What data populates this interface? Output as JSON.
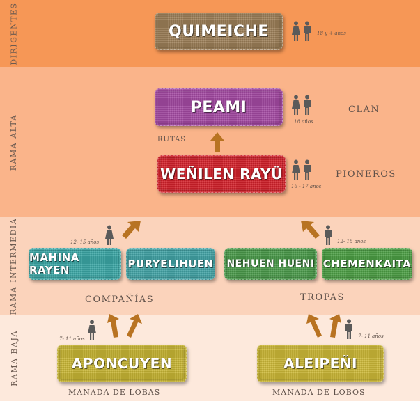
{
  "side_labels": {
    "dirigentes": "DIRIGENTES",
    "rama_alta": "RAMA ALTA",
    "rama_intermedia": "RAMA INTERMEDIA",
    "rama_baja": "RAMA BAJA"
  },
  "units": {
    "quimeiche": "QUIMEICHE",
    "peami": "PEAMI",
    "wenilen_rayu": "WEÑILEN RAYÜ",
    "mahina_rayen": "MAHINA RAYEN",
    "puryelihuen": "PURYELIHUEN",
    "nehuen_hueni": "NEHUEN HUENI",
    "chemenkaita": "CHEMENKAITA",
    "aponcuyen": "APONCUYEN",
    "aleipeni": "ALEIPEÑI"
  },
  "groups": {
    "clan": "CLAN",
    "pioneros": "PIONEROS",
    "rutas": "RUTAS",
    "companias": "COMPAÑÍAS",
    "tropas": "TROPAS",
    "manada_lobas": "MANADA DE LOBAS",
    "manada_lobos": "MANADA DE LOBOS"
  },
  "ages": {
    "dirigentes": "18 y + años",
    "clan": "18 años",
    "pioneros": "16 - 17 años",
    "intermedia_left": "12- 15 años",
    "intermedia_right": "12- 15 años",
    "baja_left": "7- 11 años",
    "baja_right": "7- 11 años"
  },
  "colors": {
    "dirigentes_band": "#f69756",
    "rama_alta_band": "#fab48a",
    "rama_intermedia_band": "#fbd3bb",
    "rama_baja_band": "#fde9dc",
    "arrow": "#b87322",
    "person_icon": "#5a5a5a"
  },
  "icons": [
    "female-icon",
    "male-icon",
    "up-arrow-icon"
  ]
}
